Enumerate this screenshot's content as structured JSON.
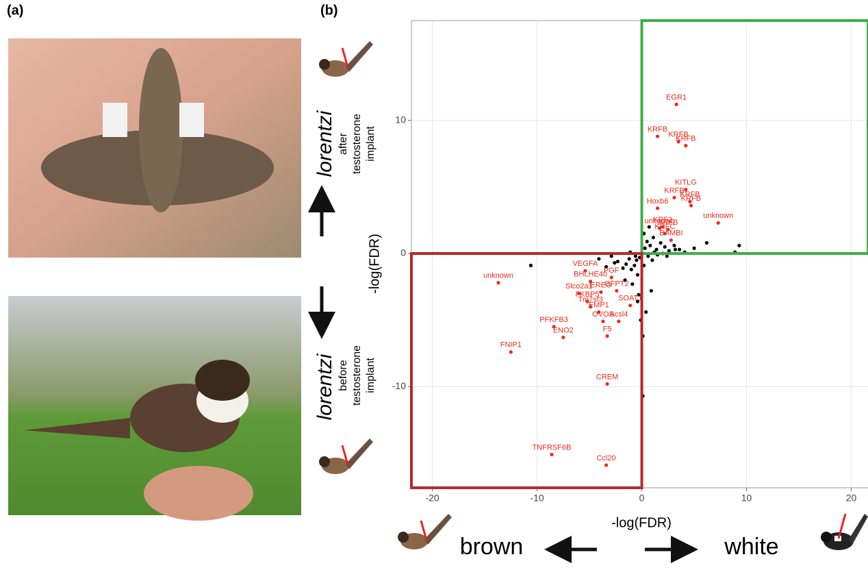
{
  "panel_labels": [
    "(a)",
    "(b)"
  ],
  "side_labels": {
    "top": {
      "species": "lorentzi",
      "lines": [
        "after",
        "testosterone",
        "implant"
      ]
    },
    "bottom": {
      "species": "lorentzi",
      "lines": [
        "before",
        "testosterone",
        "implant"
      ]
    }
  },
  "direction_labels": {
    "left": "brown",
    "right": "white"
  },
  "chart_data": {
    "type": "scatter",
    "x_label": "-log(FDR)",
    "y_label": "-log(FDR)",
    "xlim": [
      -22,
      21.6
    ],
    "ylim": [
      -17.6,
      17.5
    ],
    "xticks": [
      -20,
      -10,
      0,
      10,
      20
    ],
    "yticks": [
      -10,
      0,
      10
    ],
    "grid": true,
    "boxes": [
      {
        "color": "#3cae48",
        "x": [
          0,
          21.6
        ],
        "y": [
          0,
          17.5
        ]
      },
      {
        "color": "#b8282b",
        "x": [
          -22,
          0
        ],
        "y": [
          -17.6,
          0
        ]
      }
    ],
    "series": [
      {
        "color": "#000000",
        "x": [
          -10.6,
          9.3,
          8.9,
          6.2,
          0.1,
          0.1,
          -2.9,
          -1.5,
          -1,
          -0.5,
          0.3,
          0.5,
          0.8,
          1.1,
          1.4,
          1.8,
          2.2,
          2.6,
          3.1,
          3.6,
          4.1,
          5.0,
          -0.2,
          -0.7,
          -1.2,
          -1.8,
          -2.3,
          -0.4,
          0.2,
          0.6,
          1.0,
          1.5,
          2.0,
          -0.9,
          -0.3,
          0.4,
          0.9,
          -1.6,
          -2.6,
          -3.4,
          -4.1,
          -0.6,
          0.2,
          0.7,
          -0.1,
          -0.4,
          1.2,
          2.4,
          3.2,
          -1.1
        ],
        "values": [
          -0.9,
          0.6,
          0.1,
          0.8,
          -6.2,
          -10.7,
          -0.2,
          -0.8,
          -1.2,
          -0.5,
          0.4,
          0.9,
          0.6,
          1.2,
          0.3,
          0.8,
          0.5,
          0.2,
          0.6,
          0.3,
          0.1,
          0.4,
          -0.3,
          -0.9,
          -0.4,
          -1.1,
          -0.6,
          -1.6,
          -0.9,
          -0.2,
          -0.5,
          -0.1,
          0.0,
          -2.3,
          -3.1,
          -4.4,
          -2.8,
          -2.0,
          -0.7,
          -1.0,
          -0.4,
          -0.2,
          1.5,
          2.0,
          -5.0,
          -3.6,
          0.1,
          -0.2,
          0.3,
          0.1
        ]
      },
      {
        "color": "#ee2a1b",
        "labels": [
          "EGR1",
          "KRFB",
          "KRFB",
          "KRFB",
          "KITLG",
          "KRFB",
          "KRFB",
          "KRFB",
          "Hoxb6",
          "KRF2",
          "KRFB",
          "unknown",
          "KRFC",
          "BAMBI",
          "unknown",
          "unknown",
          "FNIP1",
          "PFKFB3",
          "ENO2",
          "TNFRSF6B",
          "Ccl20",
          "CREM",
          "F5",
          "Acsl4",
          "OVOS",
          "EMP1",
          "Tm7sf3",
          "FKBP5",
          "SOAT1",
          "Slco2a1",
          "EREG",
          "GFPT2",
          "BHLHE40",
          "PGF",
          "VEGFA"
        ],
        "x": [
          3.3,
          1.5,
          3.5,
          4.2,
          4.2,
          3.1,
          4.6,
          4.7,
          1.5,
          2.0,
          2.5,
          1.7,
          2.2,
          2.8,
          7.3,
          -13.7,
          -12.5,
          -8.4,
          -7.5,
          -8.6,
          -3.4,
          -3.3,
          -3.3,
          -2.2,
          -3.7,
          -4.1,
          -4.9,
          -5.2,
          -1.1,
          -6.0,
          -3.9,
          -2.4,
          -4.9,
          -2.9,
          -5.4
        ],
        "values": [
          11.2,
          8.8,
          8.4,
          8.1,
          4.8,
          4.2,
          3.9,
          3.6,
          3.4,
          2.0,
          1.8,
          1.9,
          1.5,
          1.0,
          2.3,
          -2.2,
          -7.4,
          -5.5,
          -6.3,
          -15.1,
          -15.9,
          -9.8,
          -6.2,
          -5.1,
          -5.1,
          -4.4,
          -4.0,
          -3.6,
          -3.9,
          -3.0,
          -2.9,
          -2.8,
          -2.1,
          -1.8,
          -1.3
        ]
      }
    ]
  }
}
